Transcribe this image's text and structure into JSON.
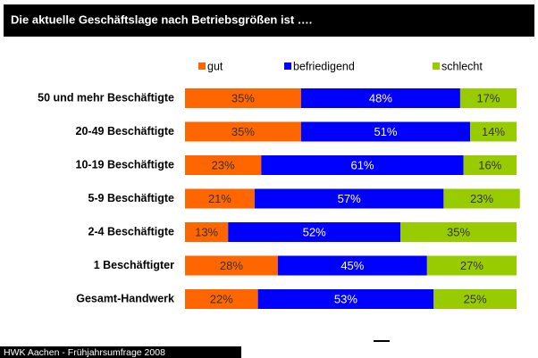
{
  "chart_data": {
    "type": "bar",
    "orientation": "horizontal",
    "stacked": true,
    "title": "Die aktuelle Geschäftslage nach Betriebsgrößen ist ….",
    "footer": "HWK Aachen - Frühjahrsumfrage 2008",
    "categories": [
      "50 und mehr Beschäftigte",
      "20-49 Beschäftigte",
      "10-19 Beschäftigte",
      "5-9 Beschäftigte",
      "2-4 Beschäftigte",
      "1 Beschäftigter",
      "Gesamt-Handwerk"
    ],
    "xlim": [
      0,
      100
    ],
    "series": [
      {
        "name": "gut",
        "color": "#ff6600",
        "values": [
          35,
          35,
          23,
          21,
          13,
          28,
          22
        ],
        "value_labels": [
          "35%",
          "35%",
          "23%",
          "21%",
          "13%",
          "28%",
          "22%"
        ]
      },
      {
        "name": "befriedigend",
        "color": "#0000ff",
        "values": [
          48,
          51,
          61,
          57,
          52,
          45,
          53
        ],
        "value_labels": [
          "48%",
          "51%",
          "61%",
          "57%",
          "52%",
          "45%",
          "53%"
        ]
      },
      {
        "name": "schlecht",
        "color": "#99cc00",
        "values": [
          17,
          14,
          16,
          23,
          35,
          27,
          25
        ],
        "value_labels": [
          "17%",
          "14%",
          "16%",
          "23%",
          "35%",
          "27%",
          "25%"
        ]
      }
    ]
  }
}
